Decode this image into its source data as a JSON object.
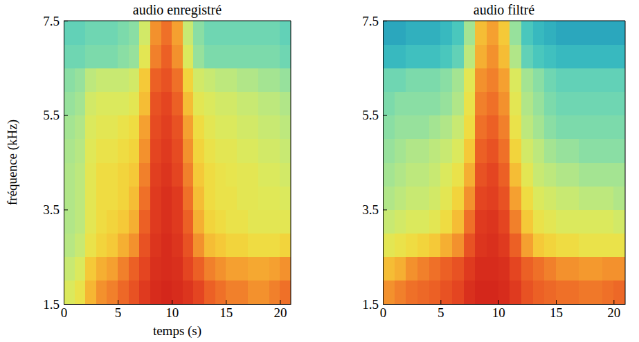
{
  "chart_data": [
    {
      "type": "heatmap",
      "title": "audio enregistré",
      "xlabel": "temps (s)",
      "ylabel": "fréquence (kHz)",
      "xlim": [
        0,
        21
      ],
      "ylim": [
        1.5,
        7.5
      ],
      "xticks": [
        0,
        5,
        10,
        15,
        20
      ],
      "yticks": [
        1.5,
        3.5,
        5.5,
        7.5
      ],
      "zlim": [
        25,
        100
      ],
      "x": [
        0.5,
        1.5,
        2.5,
        3.5,
        4.5,
        5.5,
        6.5,
        7.5,
        8.5,
        9.5,
        10.5,
        11.5,
        12.5,
        13.5,
        14.5,
        15.5,
        16.5,
        17.5,
        18.5,
        19.5,
        20.5
      ],
      "y": [
        1.75,
        2.25,
        2.75,
        3.25,
        3.75,
        4.25,
        4.75,
        5.25,
        5.75,
        6.25,
        6.75,
        7.25
      ],
      "cells": [
        [
          62,
          66,
          75,
          80,
          82,
          85,
          88,
          92,
          95,
          96,
          95,
          93,
          90,
          86,
          84,
          82,
          82,
          80,
          80,
          82,
          84
        ],
        [
          58,
          62,
          72,
          76,
          78,
          82,
          86,
          90,
          94,
          95,
          94,
          90,
          86,
          82,
          80,
          78,
          78,
          77,
          77,
          78,
          80
        ],
        [
          55,
          58,
          66,
          70,
          72,
          76,
          80,
          88,
          93,
          95,
          93,
          88,
          80,
          74,
          72,
          70,
          70,
          68,
          68,
          68,
          70
        ],
        [
          54,
          56,
          64,
          68,
          70,
          72,
          76,
          86,
          92,
          94,
          92,
          86,
          76,
          70,
          68,
          66,
          66,
          64,
          64,
          64,
          64
        ],
        [
          54,
          56,
          64,
          68,
          68,
          70,
          74,
          84,
          92,
          94,
          92,
          84,
          74,
          68,
          66,
          66,
          64,
          64,
          63,
          63,
          62
        ],
        [
          54,
          56,
          64,
          68,
          68,
          70,
          72,
          82,
          91,
          93,
          90,
          82,
          72,
          68,
          66,
          65,
          64,
          64,
          62,
          62,
          60
        ],
        [
          53,
          55,
          63,
          66,
          66,
          68,
          70,
          80,
          90,
          92,
          89,
          80,
          70,
          66,
          64,
          64,
          62,
          62,
          60,
          60,
          58
        ],
        [
          52,
          54,
          62,
          64,
          64,
          66,
          68,
          78,
          89,
          91,
          88,
          78,
          68,
          64,
          62,
          62,
          60,
          60,
          58,
          58,
          56
        ],
        [
          50,
          52,
          60,
          62,
          62,
          62,
          64,
          74,
          88,
          90,
          86,
          74,
          64,
          62,
          60,
          60,
          58,
          58,
          56,
          56,
          54
        ],
        [
          48,
          50,
          56,
          58,
          58,
          58,
          60,
          72,
          86,
          88,
          84,
          70,
          60,
          58,
          56,
          56,
          54,
          54,
          52,
          52,
          50
        ],
        [
          44,
          44,
          46,
          46,
          46,
          48,
          50,
          64,
          82,
          86,
          80,
          62,
          50,
          46,
          46,
          46,
          46,
          46,
          46,
          46,
          44
        ],
        [
          42,
          42,
          44,
          44,
          44,
          46,
          48,
          60,
          80,
          84,
          78,
          58,
          48,
          44,
          44,
          44,
          44,
          44,
          44,
          44,
          42
        ]
      ]
    },
    {
      "type": "heatmap",
      "title": "audio filtré",
      "xlim": [
        0,
        21
      ],
      "ylim": [
        1.5,
        7.5
      ],
      "xticks": [
        0,
        5,
        10,
        15,
        20
      ],
      "yticks": [
        1.5,
        3.5,
        5.5,
        7.5
      ],
      "zlim": [
        25,
        100
      ],
      "x": [
        0.5,
        1.5,
        2.5,
        3.5,
        4.5,
        5.5,
        6.5,
        7.5,
        8.5,
        9.5,
        10.5,
        11.5,
        12.5,
        13.5,
        14.5,
        15.5,
        16.5,
        17.5,
        18.5,
        19.5,
        20.5
      ],
      "y": [
        1.75,
        2.25,
        2.75,
        3.25,
        3.75,
        4.25,
        4.75,
        5.25,
        5.75,
        6.25,
        6.75,
        7.25
      ],
      "cells": [
        [
          80,
          82,
          84,
          85,
          86,
          88,
          90,
          94,
          96,
          96,
          95,
          92,
          88,
          86,
          85,
          84,
          84,
          83,
          83,
          84,
          85
        ],
        [
          74,
          76,
          80,
          82,
          84,
          86,
          88,
          92,
          95,
          95,
          94,
          90,
          86,
          84,
          82,
          80,
          80,
          79,
          79,
          80,
          80
        ],
        [
          64,
          66,
          68,
          70,
          72,
          76,
          80,
          88,
          93,
          94,
          92,
          86,
          78,
          72,
          70,
          68,
          68,
          66,
          66,
          66,
          66
        ],
        [
          58,
          60,
          62,
          62,
          64,
          68,
          74,
          84,
          92,
          93,
          90,
          82,
          72,
          66,
          64,
          62,
          62,
          62,
          62,
          62,
          60
        ],
        [
          54,
          56,
          58,
          58,
          60,
          64,
          70,
          80,
          90,
          91,
          88,
          78,
          68,
          62,
          60,
          58,
          58,
          56,
          56,
          56,
          54
        ],
        [
          52,
          54,
          56,
          56,
          58,
          62,
          66,
          76,
          88,
          90,
          86,
          74,
          64,
          58,
          56,
          54,
          54,
          52,
          52,
          52,
          52
        ],
        [
          50,
          52,
          54,
          54,
          56,
          58,
          62,
          72,
          86,
          88,
          84,
          70,
          60,
          56,
          52,
          50,
          50,
          48,
          48,
          48,
          48
        ],
        [
          48,
          50,
          50,
          50,
          52,
          54,
          58,
          68,
          84,
          86,
          82,
          66,
          56,
          52,
          48,
          46,
          46,
          46,
          46,
          46,
          46
        ],
        [
          46,
          48,
          48,
          48,
          48,
          50,
          54,
          66,
          82,
          84,
          80,
          64,
          54,
          50,
          46,
          44,
          44,
          44,
          44,
          44,
          44
        ],
        [
          44,
          44,
          46,
          46,
          46,
          48,
          52,
          64,
          80,
          82,
          78,
          62,
          52,
          48,
          44,
          42,
          42,
          42,
          42,
          42,
          42
        ],
        [
          34,
          34,
          36,
          36,
          36,
          38,
          42,
          56,
          76,
          80,
          74,
          54,
          42,
          38,
          36,
          34,
          34,
          34,
          34,
          34,
          34
        ],
        [
          30,
          30,
          32,
          32,
          32,
          34,
          38,
          52,
          74,
          78,
          72,
          50,
          38,
          34,
          32,
          30,
          30,
          30,
          30,
          30,
          30
        ]
      ]
    }
  ]
}
